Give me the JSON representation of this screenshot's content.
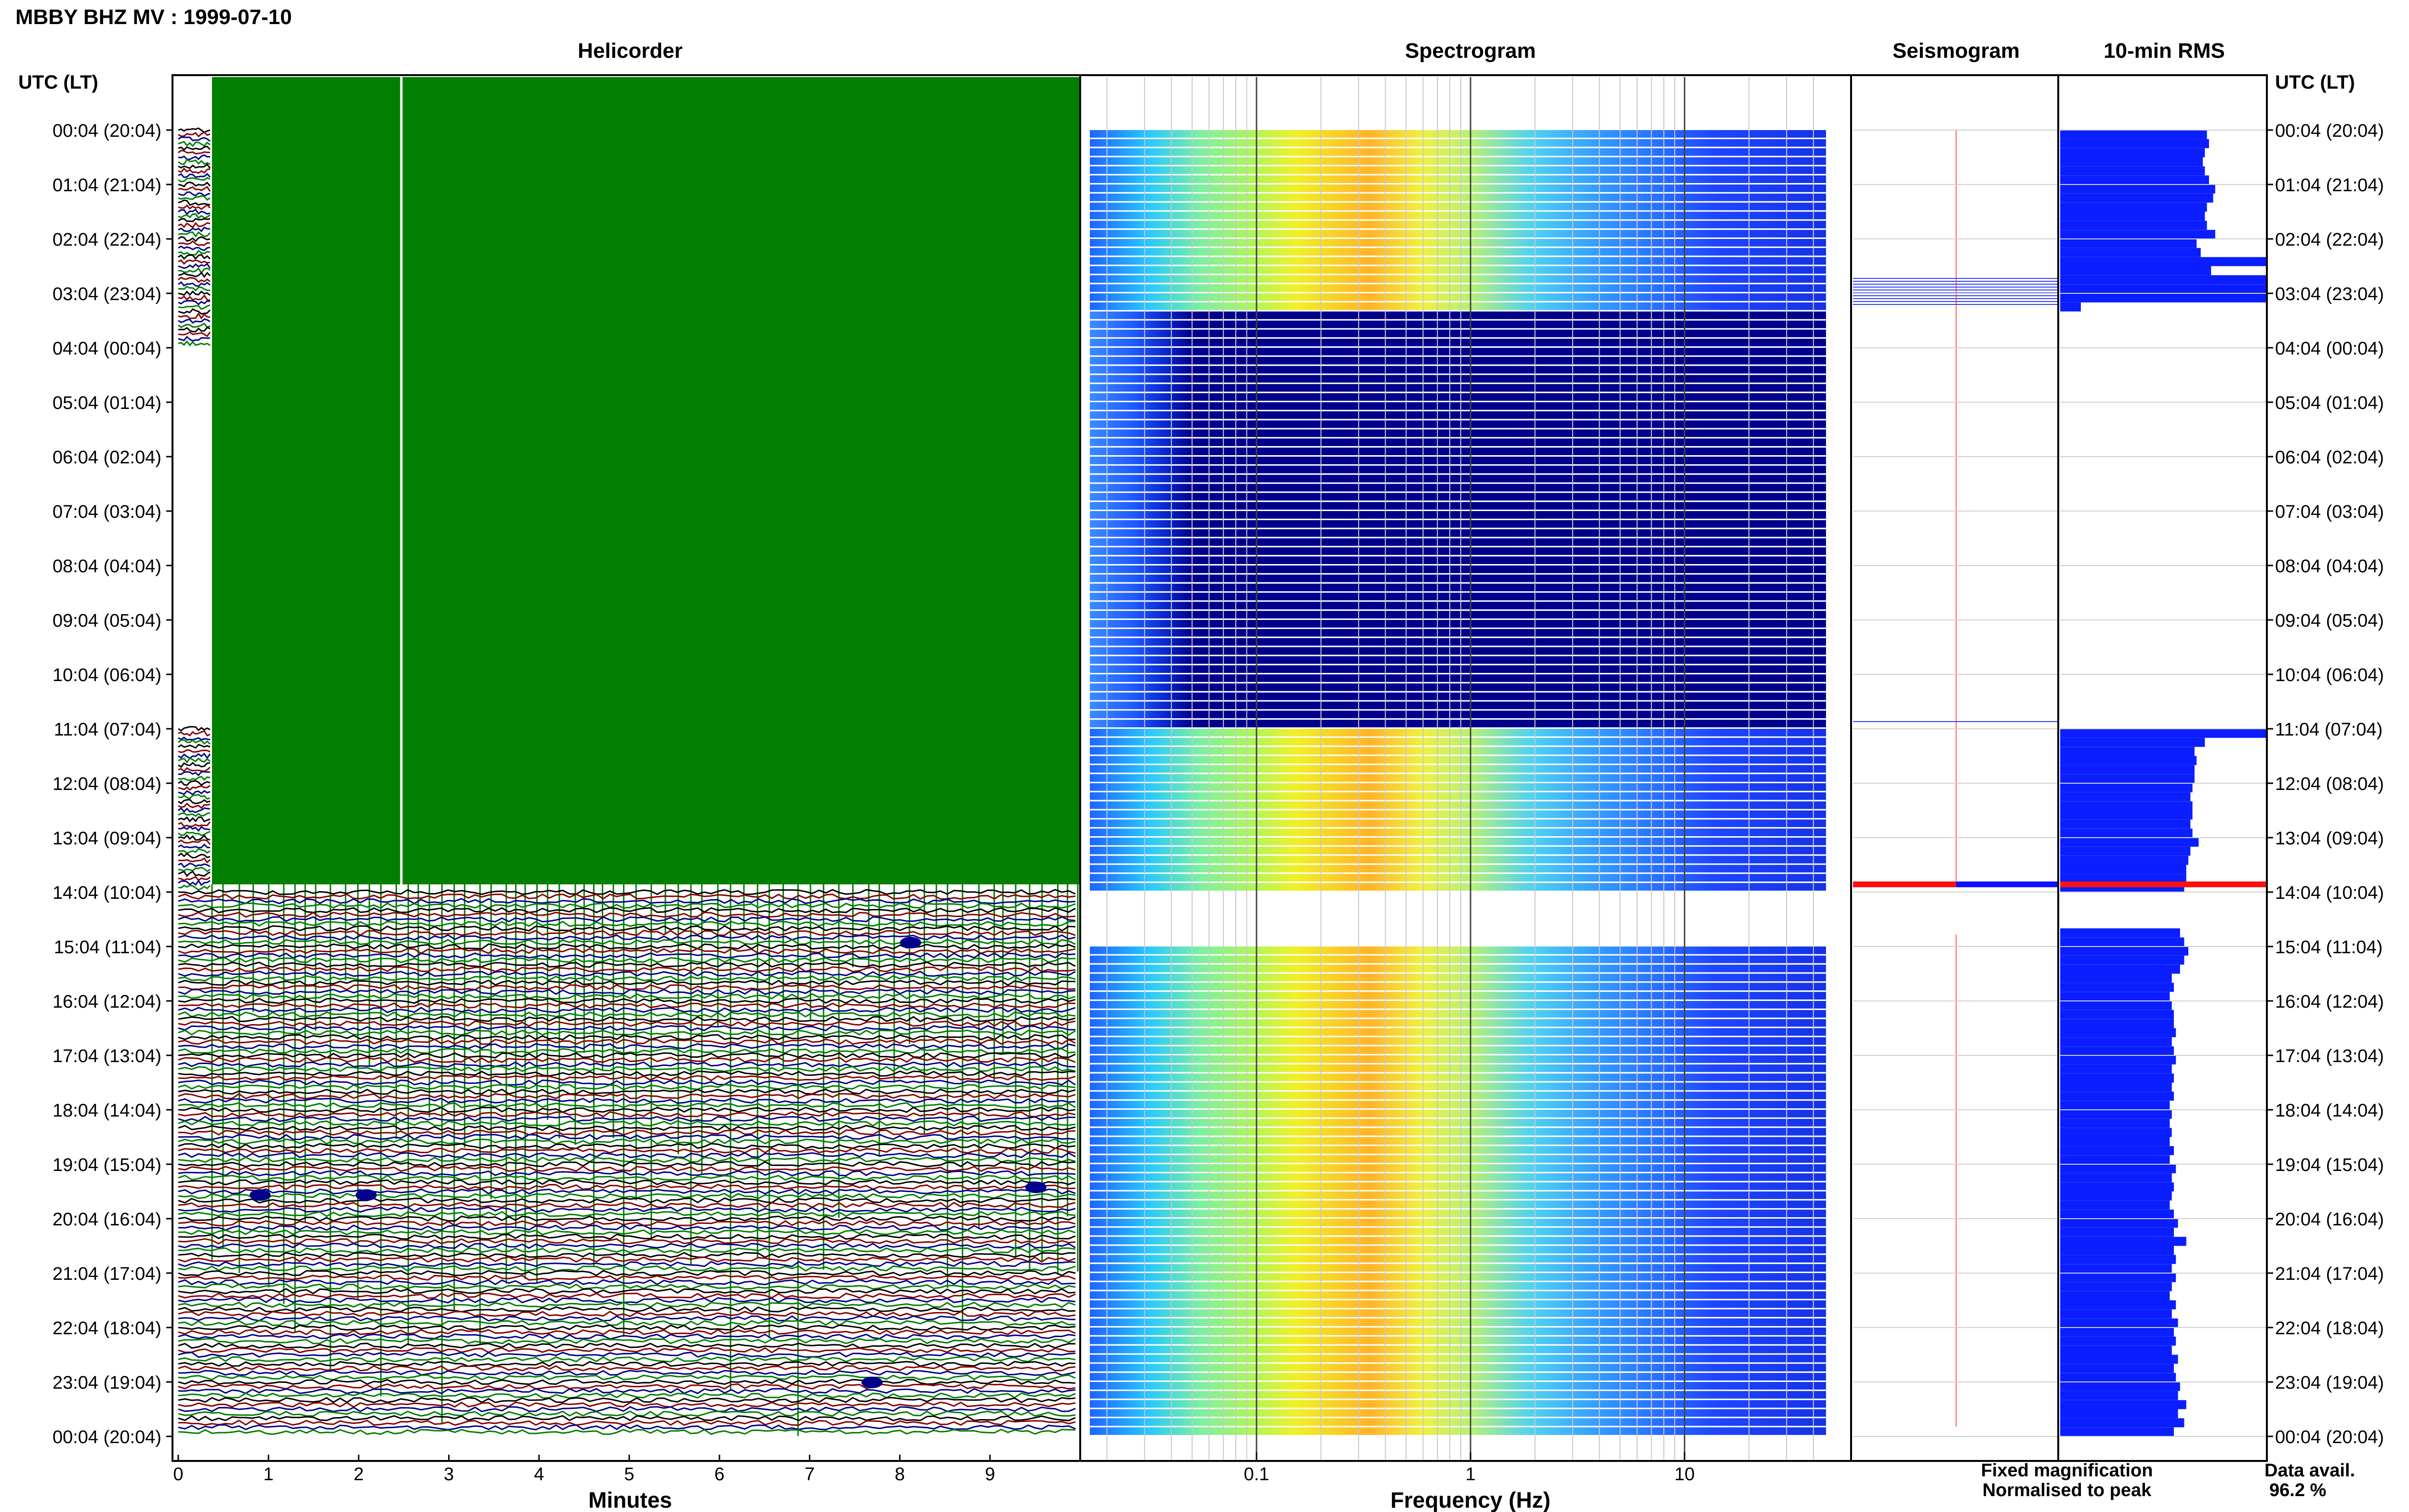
{
  "title": "MBBY BHZ MV : 1999-07-10",
  "panels": {
    "helicorder": "Helicorder",
    "spectrogram": "Spectrogram",
    "seismogram": "Seismogram",
    "rms": "10-min RMS"
  },
  "axis_left_label": "UTC (LT)",
  "axis_right_label": "UTC (LT)",
  "time_ticks": [
    "00:04 (20:04)",
    "01:04 (21:04)",
    "02:04 (22:04)",
    "03:04 (23:04)",
    "04:04 (00:04)",
    "05:04 (01:04)",
    "06:04 (02:04)",
    "07:04 (03:04)",
    "08:04 (04:04)",
    "09:04 (05:04)",
    "10:04 (06:04)",
    "11:04 (07:04)",
    "12:04 (08:04)",
    "13:04 (09:04)",
    "14:04 (10:04)",
    "15:04 (11:04)",
    "16:04 (12:04)",
    "17:04 (13:04)",
    "18:04 (14:04)",
    "19:04 (15:04)",
    "20:04 (16:04)",
    "21:04 (17:04)",
    "22:04 (18:04)",
    "23:04 (19:04)",
    "00:04 (20:04)"
  ],
  "helicorder_xlabel": "Minutes",
  "helicorder_xticks": [
    "0",
    "1",
    "2",
    "3",
    "4",
    "5",
    "6",
    "7",
    "8",
    "9"
  ],
  "spectrogram_xlabel": "Frequency (Hz)",
  "spectrogram_xticks": [
    "0.1",
    "1",
    "10"
  ],
  "legend": {
    "fixed": "Fixed magnification",
    "normalised": "Normalised to peak",
    "fixed_color": "#1010ff",
    "normalised_color": "#ff1010"
  },
  "data_avail_label": "Data avail.",
  "data_avail_value": "96.2 %",
  "colors": {
    "helicorder_fill": "#007f00",
    "rms_bar": "#0a1eff",
    "spectro_gap": "#00008b",
    "trace_colors": [
      "#000000",
      "#8b0000",
      "#00008b",
      "#008000"
    ]
  },
  "chart_data": {
    "type": "bar",
    "xlabel": "",
    "ylabel": "UTC (LT)",
    "categories": [
      "00:04",
      "00:14",
      "00:24",
      "00:34",
      "00:44",
      "00:54",
      "01:04",
      "01:14",
      "01:24",
      "01:34",
      "01:44",
      "01:54",
      "02:04",
      "02:14",
      "02:24",
      "02:34",
      "02:44",
      "02:54",
      "03:04",
      "03:14",
      "03:24",
      "03:34",
      "03:44",
      "03:54",
      "04:04",
      "04:14",
      "04:24",
      "04:34",
      "04:44",
      "04:54",
      "05:04",
      "05:14",
      "05:24",
      "05:34",
      "05:44",
      "05:54",
      "06:04",
      "06:14",
      "06:24",
      "06:34",
      "06:44",
      "06:54",
      "07:04",
      "07:14",
      "07:24",
      "07:34",
      "07:44",
      "07:54",
      "08:04",
      "08:14",
      "08:24",
      "08:34",
      "08:44",
      "08:54",
      "09:04",
      "09:14",
      "09:24",
      "09:34",
      "09:44",
      "09:54",
      "10:04",
      "10:14",
      "10:24",
      "10:34",
      "10:44",
      "10:54",
      "11:04",
      "11:14",
      "11:24",
      "11:34",
      "11:44",
      "11:54",
      "12:04",
      "12:14",
      "12:24",
      "12:34",
      "12:44",
      "12:54",
      "13:04",
      "13:14",
      "13:24",
      "13:34",
      "13:44",
      "13:54",
      "14:04",
      "14:14",
      "14:24",
      "14:34",
      "14:44",
      "14:54",
      "15:04",
      "15:14",
      "15:24",
      "15:34",
      "15:44",
      "15:54",
      "16:04",
      "16:14",
      "16:24",
      "16:34",
      "16:44",
      "16:54",
      "17:04",
      "17:14",
      "17:24",
      "17:34",
      "17:44",
      "17:54",
      "18:04",
      "18:14",
      "18:24",
      "18:34",
      "18:44",
      "18:54",
      "19:04",
      "19:14",
      "19:24",
      "19:34",
      "19:44",
      "19:54",
      "20:04",
      "20:14",
      "20:24",
      "20:34",
      "20:44",
      "20:54",
      "21:04",
      "21:14",
      "21:24",
      "21:34",
      "21:44",
      "21:54",
      "22:04",
      "22:14",
      "22:24",
      "22:34",
      "22:44",
      "22:54",
      "23:04",
      "23:14",
      "23:24",
      "23:34",
      "23:44",
      "23:54"
    ],
    "series": [
      {
        "values": [
          0.71,
          0.72,
          0.7,
          0.69,
          0.7,
          0.72,
          0.75,
          0.74,
          0.71,
          0.7,
          0.71,
          0.75,
          0.66,
          0.68,
          1.0,
          0.73,
          1.0,
          1.0,
          1.0,
          0.1,
          0,
          0,
          0,
          0,
          0,
          0,
          0,
          0,
          0,
          0,
          0,
          0,
          0,
          0,
          0,
          0,
          0,
          0,
          0,
          0,
          0,
          0,
          0,
          0,
          0,
          0,
          0,
          0,
          0,
          0,
          0,
          0,
          0,
          0,
          0,
          0,
          0,
          0,
          0,
          0,
          0,
          0,
          0,
          0,
          0,
          0,
          1.0,
          0.7,
          0.65,
          0.66,
          0.65,
          0.65,
          0.64,
          0.63,
          0.64,
          0.64,
          0.63,
          0.64,
          0.67,
          0.63,
          0.62,
          0.61,
          0.61,
          0.6,
          0,
          0,
          0,
          0,
          0.58,
          0.6,
          0.62,
          0.6,
          0.58,
          0.54,
          0.55,
          0.53,
          0.54,
          0.55,
          0.55,
          0.56,
          0.54,
          0.55,
          0.56,
          0.54,
          0.55,
          0.54,
          0.55,
          0.53,
          0.54,
          0.53,
          0.54,
          0.53,
          0.55,
          0.53,
          0.56,
          0.54,
          0.55,
          0.54,
          0.53,
          0.55,
          0.57,
          0.55,
          0.61,
          0.55,
          0.56,
          0.54,
          0.56,
          0.54,
          0.53,
          0.56,
          0.54,
          0.57,
          0.55,
          0.56,
          0.54,
          0.57,
          0.55,
          0.56,
          0.58,
          0.57,
          0.61,
          0.57,
          0.6,
          0.55
        ]
      }
    ]
  }
}
